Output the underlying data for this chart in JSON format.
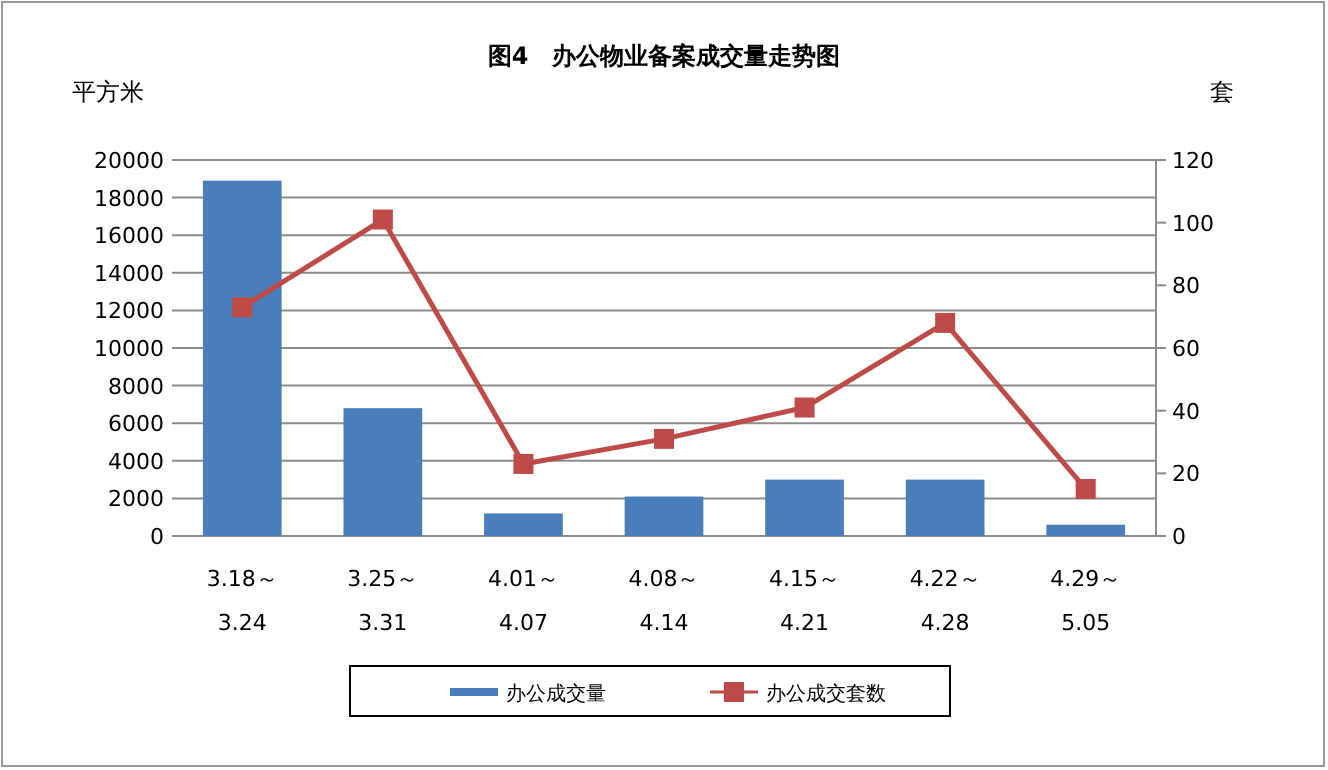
{
  "chart_data": {
    "type": "bar",
    "title": "图4　办公物业备案成交量走势图",
    "ylabel": "平方米",
    "y2label": "套",
    "categories": [
      "3.18～\n3.24",
      "3.25～\n3.31",
      "4.01～\n4.07",
      "4.08～\n4.14",
      "4.15～\n4.21",
      "4.22～\n4.28",
      "4.29～\n5.05"
    ],
    "series": [
      {
        "name": "办公成交量",
        "color": "#4a7ebb",
        "values": [
          18900,
          6800,
          1200,
          2100,
          3000,
          3000,
          600
        ]
      },
      {
        "name": "办公成交套数",
        "type": "line",
        "axis": "y2",
        "color": "#be4b48",
        "marker": "square",
        "values": [
          73,
          101,
          23,
          31,
          41,
          68,
          15
        ]
      }
    ],
    "ylim": [
      0,
      20000
    ],
    "yticks": [
      0,
      2000,
      4000,
      6000,
      8000,
      10000,
      12000,
      14000,
      16000,
      18000,
      20000
    ],
    "y2lim": [
      0,
      120
    ],
    "y2ticks": [
      0,
      20,
      40,
      60,
      80,
      100,
      120
    ],
    "grid": "y",
    "legend": "bottom"
  }
}
